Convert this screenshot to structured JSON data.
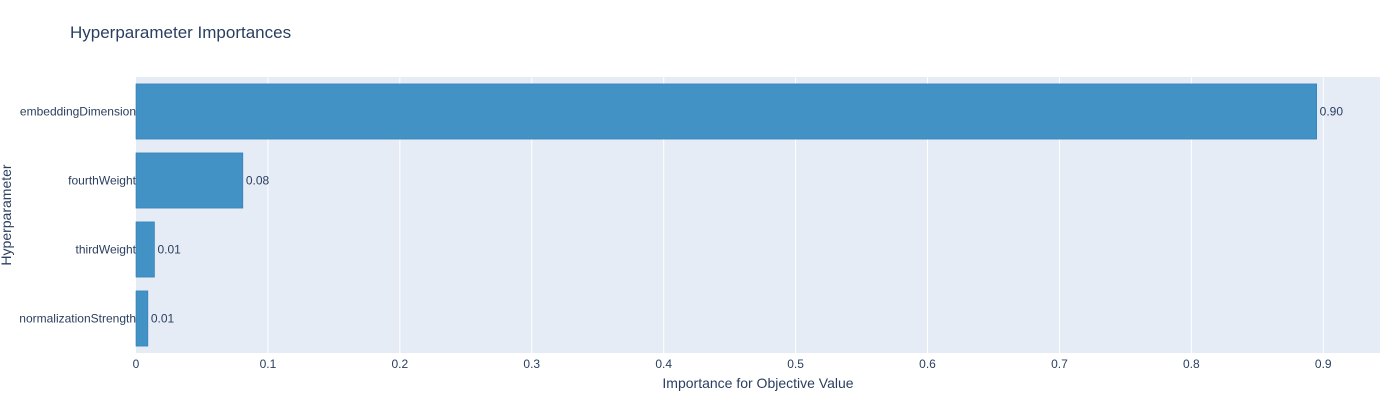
{
  "chart_data": {
    "type": "bar",
    "orientation": "horizontal",
    "title": "Hyperparameter Importances",
    "xlabel": "Importance for Objective Value",
    "ylabel": "Hyperparameter",
    "categories": [
      "embeddingDimension",
      "fourthWeight",
      "thirdWeight",
      "normalizationStrength"
    ],
    "values": [
      0.895,
      0.081,
      0.014,
      0.009
    ],
    "value_labels": [
      "0.90",
      "0.08",
      "0.01",
      "0.01"
    ],
    "xlim": [
      0,
      0.943
    ],
    "xticks": [
      0,
      0.1,
      0.2,
      0.3,
      0.4,
      0.5,
      0.6,
      0.7,
      0.8,
      0.9
    ],
    "xtick_labels": [
      "0",
      "0.1",
      "0.2",
      "0.3",
      "0.4",
      "0.5",
      "0.6",
      "0.7",
      "0.8",
      "0.9"
    ],
    "grid": true,
    "colors": {
      "bar": "#4292c6",
      "bar_edge": "#2f7ab5",
      "plot_bg": "#e5ecf6",
      "grid": "#ffffff",
      "text": "#2a3f5f"
    }
  }
}
